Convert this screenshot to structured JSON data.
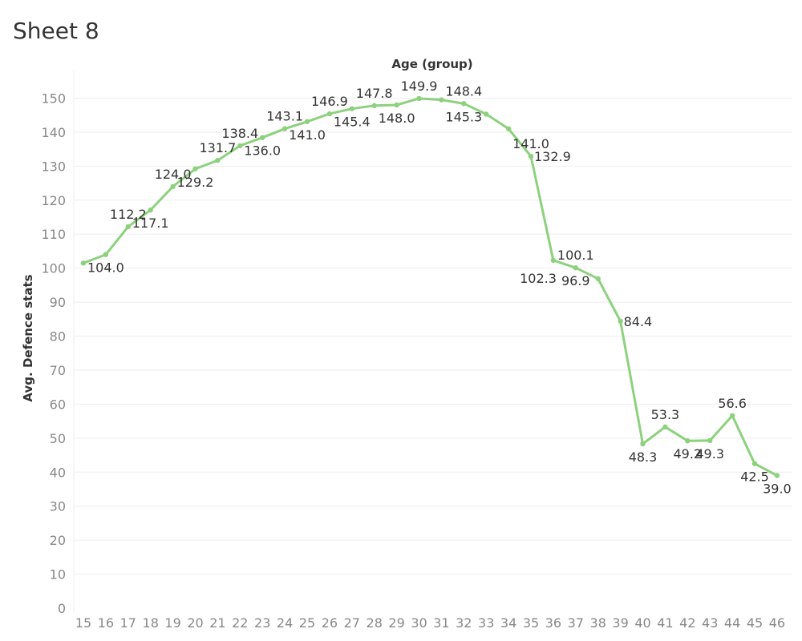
{
  "sheet": {
    "title": "Sheet 8"
  },
  "colors": {
    "line": "#8dd17e",
    "grid": "#eeeeee",
    "tick": "#888888",
    "text": "#333333"
  },
  "chart_data": {
    "type": "line",
    "xlabel": "Age (group)",
    "ylabel": "Avg. Defence stats",
    "ylim": [
      0,
      155
    ],
    "yticks": [
      0,
      10,
      20,
      30,
      40,
      50,
      60,
      70,
      80,
      90,
      100,
      110,
      120,
      130,
      140,
      150
    ],
    "x": [
      15,
      16,
      17,
      18,
      19,
      20,
      21,
      22,
      23,
      24,
      25,
      26,
      27,
      28,
      29,
      30,
      31,
      32,
      33,
      34,
      35,
      36,
      37,
      38,
      39,
      40,
      41,
      42,
      43,
      44,
      45,
      46
    ],
    "values": [
      101.5,
      104.0,
      112.2,
      117.1,
      124.0,
      129.2,
      131.7,
      136.0,
      138.4,
      141.0,
      143.1,
      145.4,
      146.9,
      147.8,
      148.0,
      149.9,
      149.5,
      148.4,
      145.3,
      141.0,
      132.9,
      102.3,
      100.1,
      96.9,
      84.4,
      48.3,
      53.3,
      49.2,
      49.3,
      56.6,
      42.5,
      39.0
    ],
    "labels": [
      {
        "x": 16,
        "text": "104.0",
        "pos": "below"
      },
      {
        "x": 17,
        "text": "112.2",
        "pos": "above"
      },
      {
        "x": 18,
        "text": "117.1",
        "pos": "below"
      },
      {
        "x": 19,
        "text": "124.0",
        "pos": "above"
      },
      {
        "x": 20,
        "text": "129.2",
        "pos": "below"
      },
      {
        "x": 21,
        "text": "131.7",
        "pos": "above"
      },
      {
        "x": 22,
        "text": "138.4",
        "pos": "above"
      },
      {
        "x": 23,
        "text": "136.0",
        "pos": "below"
      },
      {
        "x": 24,
        "text": "143.1",
        "pos": "above"
      },
      {
        "x": 25,
        "text": "141.0",
        "pos": "below"
      },
      {
        "x": 26,
        "text": "146.9",
        "pos": "above"
      },
      {
        "x": 27,
        "text": "145.4",
        "pos": "below"
      },
      {
        "x": 28,
        "text": "147.8",
        "pos": "above"
      },
      {
        "x": 29,
        "text": "148.0",
        "pos": "below"
      },
      {
        "x": 30,
        "text": "149.9",
        "pos": "above"
      },
      {
        "x": 32,
        "text": "148.4",
        "pos": "above"
      },
      {
        "x": 32,
        "text": "145.3",
        "pos": "below"
      },
      {
        "x": 35,
        "text": "141.0",
        "pos": "above"
      },
      {
        "x": 35,
        "text": "132.9",
        "pos": "right"
      },
      {
        "x": 36,
        "text": "102.3",
        "pos": "below-left"
      },
      {
        "x": 37,
        "text": "100.1",
        "pos": "above"
      },
      {
        "x": 37,
        "text": "96.9",
        "pos": "below"
      },
      {
        "x": 39,
        "text": "84.4",
        "pos": "right"
      },
      {
        "x": 40,
        "text": "48.3",
        "pos": "below"
      },
      {
        "x": 41,
        "text": "53.3",
        "pos": "above"
      },
      {
        "x": 42,
        "text": "49.2",
        "pos": "below"
      },
      {
        "x": 43,
        "text": "49.3",
        "pos": "below"
      },
      {
        "x": 44,
        "text": "56.6",
        "pos": "above"
      },
      {
        "x": 45,
        "text": "42.5",
        "pos": "below"
      },
      {
        "x": 46,
        "text": "39.0",
        "pos": "below"
      }
    ]
  }
}
